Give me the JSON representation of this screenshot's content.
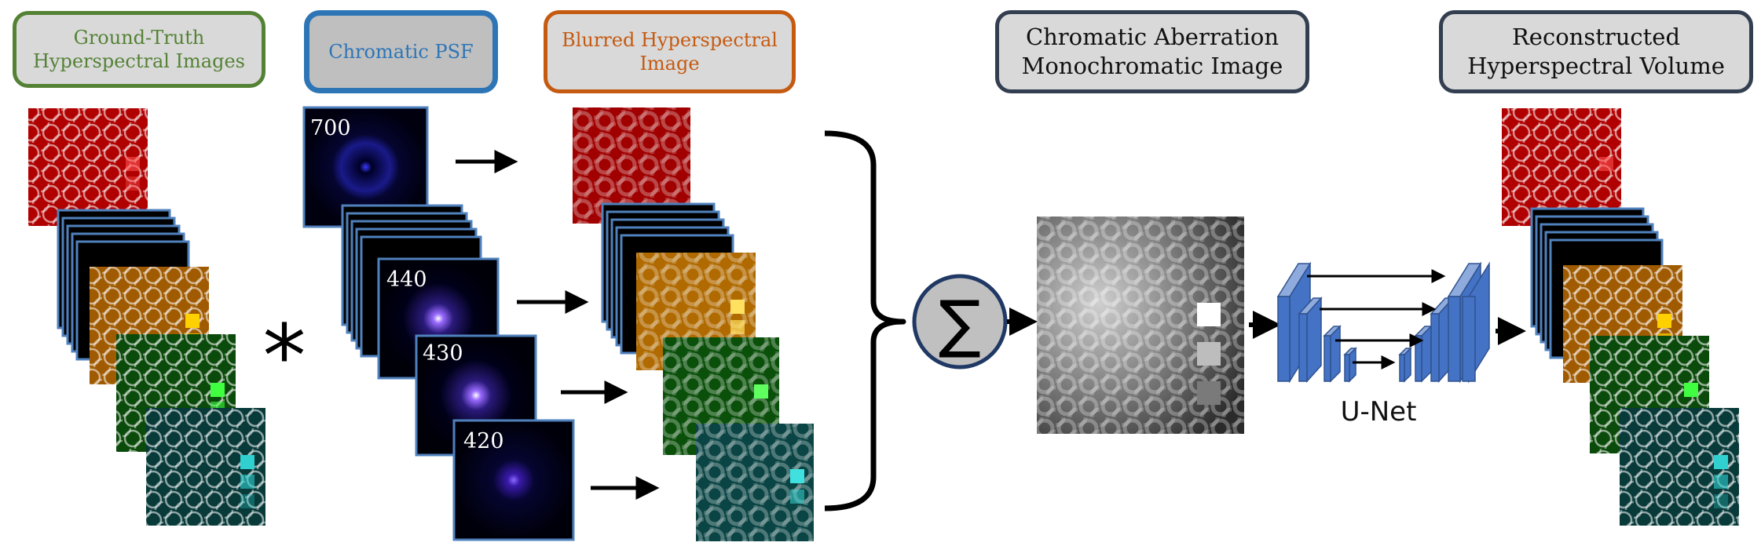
{
  "headers": {
    "ground_truth": "Ground-Truth\nHyperspectral Images",
    "chromatic_psf": "Chromatic PSF",
    "blurred": "Blurred Hyperspectral\nImage",
    "mono": "Chromatic Aberration\nMonochromatic Image",
    "reconstructed": "Reconstructed\nHyperspectral Volume"
  },
  "colors": {
    "ground_truth": "#548235",
    "chromatic_psf": "#2e75b6",
    "blurred": "#c55a11",
    "mono": "#333f50",
    "reconstructed": "#333f50",
    "stack_border": "#4f81bd",
    "unet_block": "#4472c4"
  },
  "psf_wavelengths": [
    "700",
    "440",
    "430",
    "420"
  ],
  "operators": {
    "convolve": "*",
    "sum": "∑"
  },
  "unet_label": "U-Net"
}
